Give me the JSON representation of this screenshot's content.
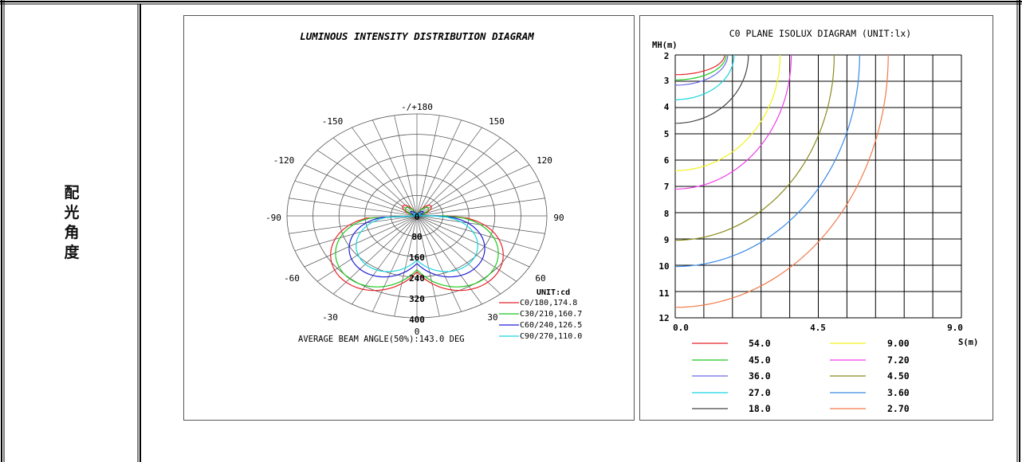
{
  "row_label": [
    "配",
    "光",
    "角",
    "度"
  ],
  "polar": {
    "title": "LUMINOUS INTENSITY DISTRIBUTION DIAGRAM",
    "angle_labels": [
      "-/+180",
      "-150",
      "150",
      "-120",
      "120",
      "-90",
      "90",
      "-60",
      "60",
      "-30",
      "30",
      "0"
    ],
    "radial_labels": [
      "0",
      "80",
      "160",
      "240",
      "320",
      "400"
    ],
    "unit_label": "UNIT:cd",
    "legend": [
      {
        "label": "C0/180,174.8",
        "color": "#e8232a"
      },
      {
        "label": "C30/210,160.7",
        "color": "#1ec81e"
      },
      {
        "label": "C60/240,126.5",
        "color": "#2020d8"
      },
      {
        "label": "C90/270,110.0",
        "color": "#19d4e0"
      }
    ],
    "beam_angle_text": "AVERAGE BEAM ANGLE(50%):143.0 DEG"
  },
  "isolux": {
    "title": "C0 PLANE ISOLUX DIAGRAM (UNIT:lx)",
    "y_axis_label": "MH(m)",
    "y_ticks": [
      "2",
      "3",
      "4",
      "5",
      "6",
      "7",
      "8",
      "9",
      "10",
      "11",
      "12"
    ],
    "x_ticks": [
      "0.0",
      "4.5",
      "9.0"
    ],
    "x_axis_label": "S(m)",
    "legend": [
      {
        "value": "54.0",
        "color": "#e8232a"
      },
      {
        "value": "45.0",
        "color": "#1ec81e"
      },
      {
        "value": "36.0",
        "color": "#6a6ae8"
      },
      {
        "value": "27.0",
        "color": "#19d4e0"
      },
      {
        "value": "18.0",
        "color": "#444444"
      },
      {
        "value": "9.00",
        "color": "#f2f21e"
      },
      {
        "value": "7.20",
        "color": "#ee3ee8"
      },
      {
        "value": "4.50",
        "color": "#8a8a1e"
      },
      {
        "value": "3.60",
        "color": "#3a8ae6"
      },
      {
        "value": "2.70",
        "color": "#f07a4a"
      }
    ]
  }
}
